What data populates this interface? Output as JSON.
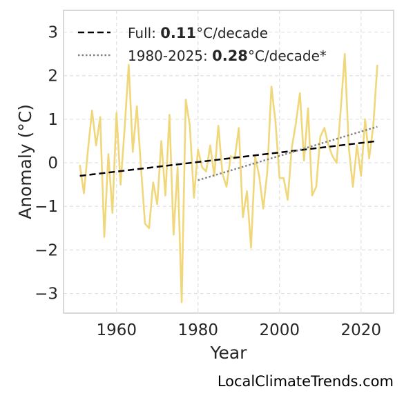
{
  "chart_data": {
    "type": "line",
    "xlabel": "Year",
    "ylabel": "Anomaly (°C)",
    "xlim": [
      1947,
      2028
    ],
    "ylim": [
      -3.45,
      3.5
    ],
    "xticks": [
      1960,
      1980,
      2000,
      2020
    ],
    "yticks": [
      -3,
      -2,
      -1,
      0,
      1,
      2,
      3
    ],
    "ytick_labels": [
      "−3",
      "−2",
      "−1",
      "0",
      "1",
      "2",
      "3"
    ],
    "grid": true,
    "legend_position": "top-left",
    "series": [
      {
        "style": "solid",
        "color": "#f0d77a",
        "x": [
          1951,
          1952,
          1953,
          1954,
          1955,
          1956,
          1957,
          1958,
          1959,
          1960,
          1961,
          1962,
          1963,
          1964,
          1965,
          1966,
          1967,
          1968,
          1969,
          1970,
          1971,
          1972,
          1973,
          1974,
          1975,
          1976,
          1977,
          1978,
          1979,
          1980,
          1981,
          1982,
          1983,
          1984,
          1985,
          1986,
          1987,
          1988,
          1989,
          1990,
          1991,
          1992,
          1993,
          1994,
          1995,
          1996,
          1997,
          1998,
          1999,
          2000,
          2001,
          2002,
          2003,
          2004,
          2005,
          2006,
          2007,
          2008,
          2009,
          2010,
          2011,
          2012,
          2013,
          2014,
          2015,
          2016,
          2017,
          2018,
          2019,
          2020,
          2021,
          2022,
          2023,
          2024
        ],
        "y": [
          -0.05,
          -0.7,
          0.3,
          1.2,
          0.4,
          1.05,
          -1.7,
          0.2,
          -1.15,
          1.15,
          -0.5,
          0.8,
          2.25,
          0.25,
          1.3,
          -0.1,
          -1.4,
          -1.5,
          -0.45,
          -0.95,
          0.5,
          -0.75,
          1.1,
          -1.65,
          -0.1,
          -3.2,
          1.45,
          0.85,
          -0.8,
          0.3,
          -0.1,
          -0.2,
          0.4,
          -0.3,
          0.85,
          -0.25,
          -0.55,
          0.15,
          0.1,
          0.8,
          -1.25,
          -0.65,
          -1.95,
          0.15,
          -0.3,
          -1.05,
          -0.2,
          1.75,
          0.95,
          -0.35,
          -0.35,
          -0.85,
          0.35,
          0.9,
          1.6,
          0.05,
          1.25,
          -0.75,
          -0.55,
          0.6,
          0.8,
          0.4,
          0.15,
          0.0,
          1.2,
          2.5,
          0.35,
          -0.55,
          0.4,
          -0.3,
          1.0,
          0.1,
          0.85,
          2.25
        ]
      },
      {
        "name": "Full",
        "style": "dashed",
        "color": "#000000",
        "x": [
          1951,
          2024
        ],
        "y": [
          -0.3,
          0.5
        ]
      },
      {
        "name": "1980-2025",
        "style": "dotted",
        "color": "#808080",
        "x": [
          1980,
          2024
        ],
        "y": [
          -0.4,
          0.83
        ]
      }
    ],
    "legend": [
      {
        "prefix": "Full: ",
        "bold": "0.11",
        "suffix": "°C/decade",
        "style": "dashed",
        "color": "#000000"
      },
      {
        "prefix": "1980-2025: ",
        "bold": "0.28",
        "suffix": "°C/decade*",
        "style": "dotted",
        "color": "#808080"
      }
    ]
  },
  "footer": {
    "text": "LocalClimateTrends.com"
  }
}
